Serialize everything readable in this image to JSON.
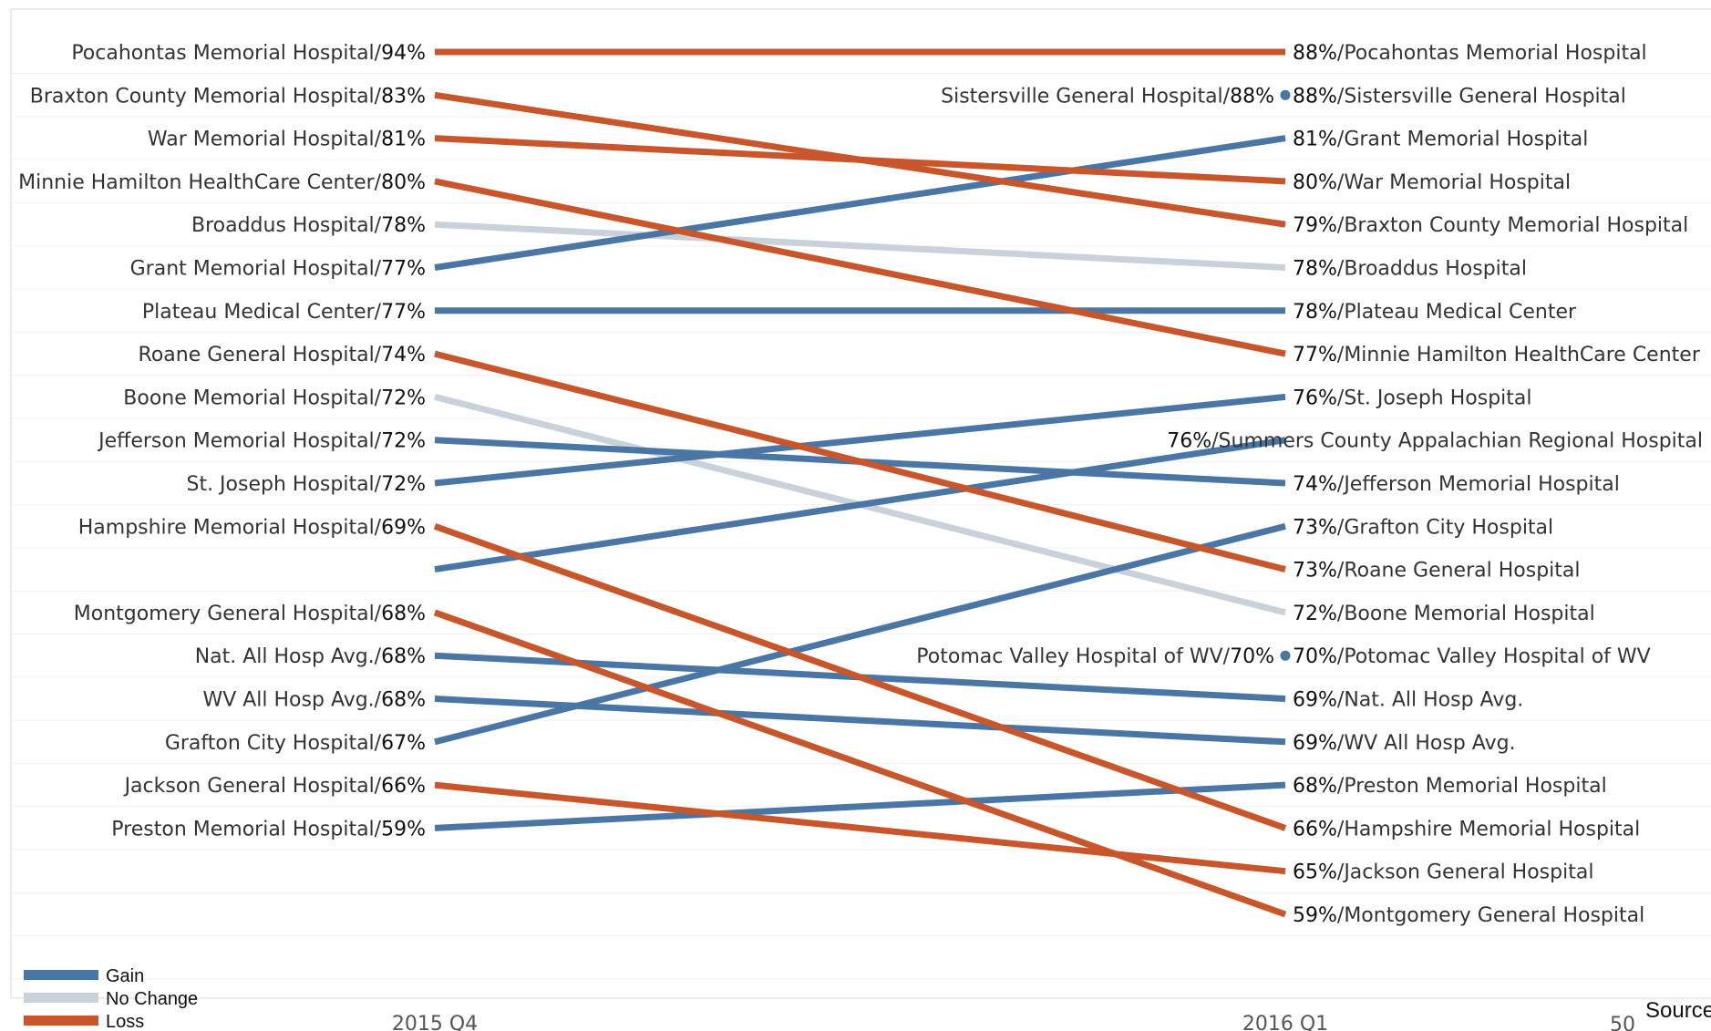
{
  "colors": {
    "gain": "#4a76a6",
    "no_change": "#c9d1db",
    "loss": "#c9562a"
  },
  "source_text": "Source",
  "stray_tick": "50",
  "chart_data": {
    "type": "line",
    "subtype": "slope",
    "categories": [
      "2015 Q4",
      "2016 Q1"
    ],
    "grid": true,
    "legend_position": "bottom-left",
    "legend": [
      {
        "key": "gain",
        "label": "Gain"
      },
      {
        "key": "no_change",
        "label": "No Change"
      },
      {
        "key": "loss",
        "label": "Loss"
      }
    ],
    "series": [
      {
        "name": "Pocahontas Memorial Hospital",
        "change": "loss",
        "values": [
          94,
          88
        ],
        "left_slot": 0,
        "right_slot": 0
      },
      {
        "name": "Sistersville General Hospital",
        "change": "gain",
        "values": [
          null,
          88
        ],
        "left_slot": null,
        "right_slot": 1
      },
      {
        "name": "Braxton County Memorial Hospital",
        "change": "loss",
        "values": [
          83,
          79
        ],
        "left_slot": 1,
        "right_slot": 4
      },
      {
        "name": "War Memorial Hospital",
        "change": "loss",
        "values": [
          81,
          80
        ],
        "left_slot": 2,
        "right_slot": 3
      },
      {
        "name": "Minnie Hamilton HealthCare Center",
        "change": "loss",
        "values": [
          80,
          77
        ],
        "left_slot": 3,
        "right_slot": 7
      },
      {
        "name": "Broaddus Hospital",
        "change": "no_change",
        "values": [
          78,
          78
        ],
        "left_slot": 4,
        "right_slot": 5
      },
      {
        "name": "Grant Memorial Hospital",
        "change": "gain",
        "values": [
          77,
          81
        ],
        "left_slot": 5,
        "right_slot": 2
      },
      {
        "name": "Plateau Medical Center",
        "change": "gain",
        "values": [
          77,
          78
        ],
        "left_slot": 6,
        "right_slot": 6
      },
      {
        "name": "Roane General Hospital",
        "change": "loss",
        "values": [
          74,
          73
        ],
        "left_slot": 7,
        "right_slot": 12
      },
      {
        "name": "Boone Memorial Hospital",
        "change": "no_change",
        "values": [
          72,
          72
        ],
        "left_slot": 8,
        "right_slot": 13
      },
      {
        "name": "Jefferson Memorial Hospital",
        "change": "gain",
        "values": [
          72,
          74
        ],
        "left_slot": 9,
        "right_slot": 10
      },
      {
        "name": "St. Joseph Hospital",
        "change": "gain",
        "values": [
          72,
          76
        ],
        "left_slot": 10,
        "right_slot": 8
      },
      {
        "name": "Hampshire Memorial Hospital",
        "change": "loss",
        "values": [
          69,
          66
        ],
        "left_slot": 11,
        "right_slot": 18
      },
      {
        "name": "Summers County Appalachian Regional Hospital",
        "change": "gain",
        "values": [
          null,
          76
        ],
        "left_slot": 12,
        "right_slot": 9,
        "left_unlabeled": true
      },
      {
        "name": "Montgomery General Hospital",
        "change": "loss",
        "values": [
          68,
          59
        ],
        "left_slot": 13,
        "right_slot": 20
      },
      {
        "name": "Nat. All Hosp Avg.",
        "change": "gain",
        "values": [
          68,
          69
        ],
        "left_slot": 14,
        "right_slot": 15
      },
      {
        "name": "WV All Hosp Avg.",
        "change": "gain",
        "values": [
          68,
          69
        ],
        "left_slot": 15,
        "right_slot": 16
      },
      {
        "name": "Grafton City Hospital",
        "change": "gain",
        "values": [
          67,
          73
        ],
        "left_slot": 16,
        "right_slot": 11
      },
      {
        "name": "Jackson General Hospital",
        "change": "loss",
        "values": [
          66,
          65
        ],
        "left_slot": 17,
        "right_slot": 19
      },
      {
        "name": "Preston Memorial Hospital",
        "change": "gain",
        "values": [
          59,
          68
        ],
        "left_slot": 18,
        "right_slot": 17
      },
      {
        "name": "Potomac Valley Hospital of WV",
        "change": "gain",
        "values": [
          null,
          70
        ],
        "left_slot": null,
        "right_slot": 14
      }
    ]
  }
}
